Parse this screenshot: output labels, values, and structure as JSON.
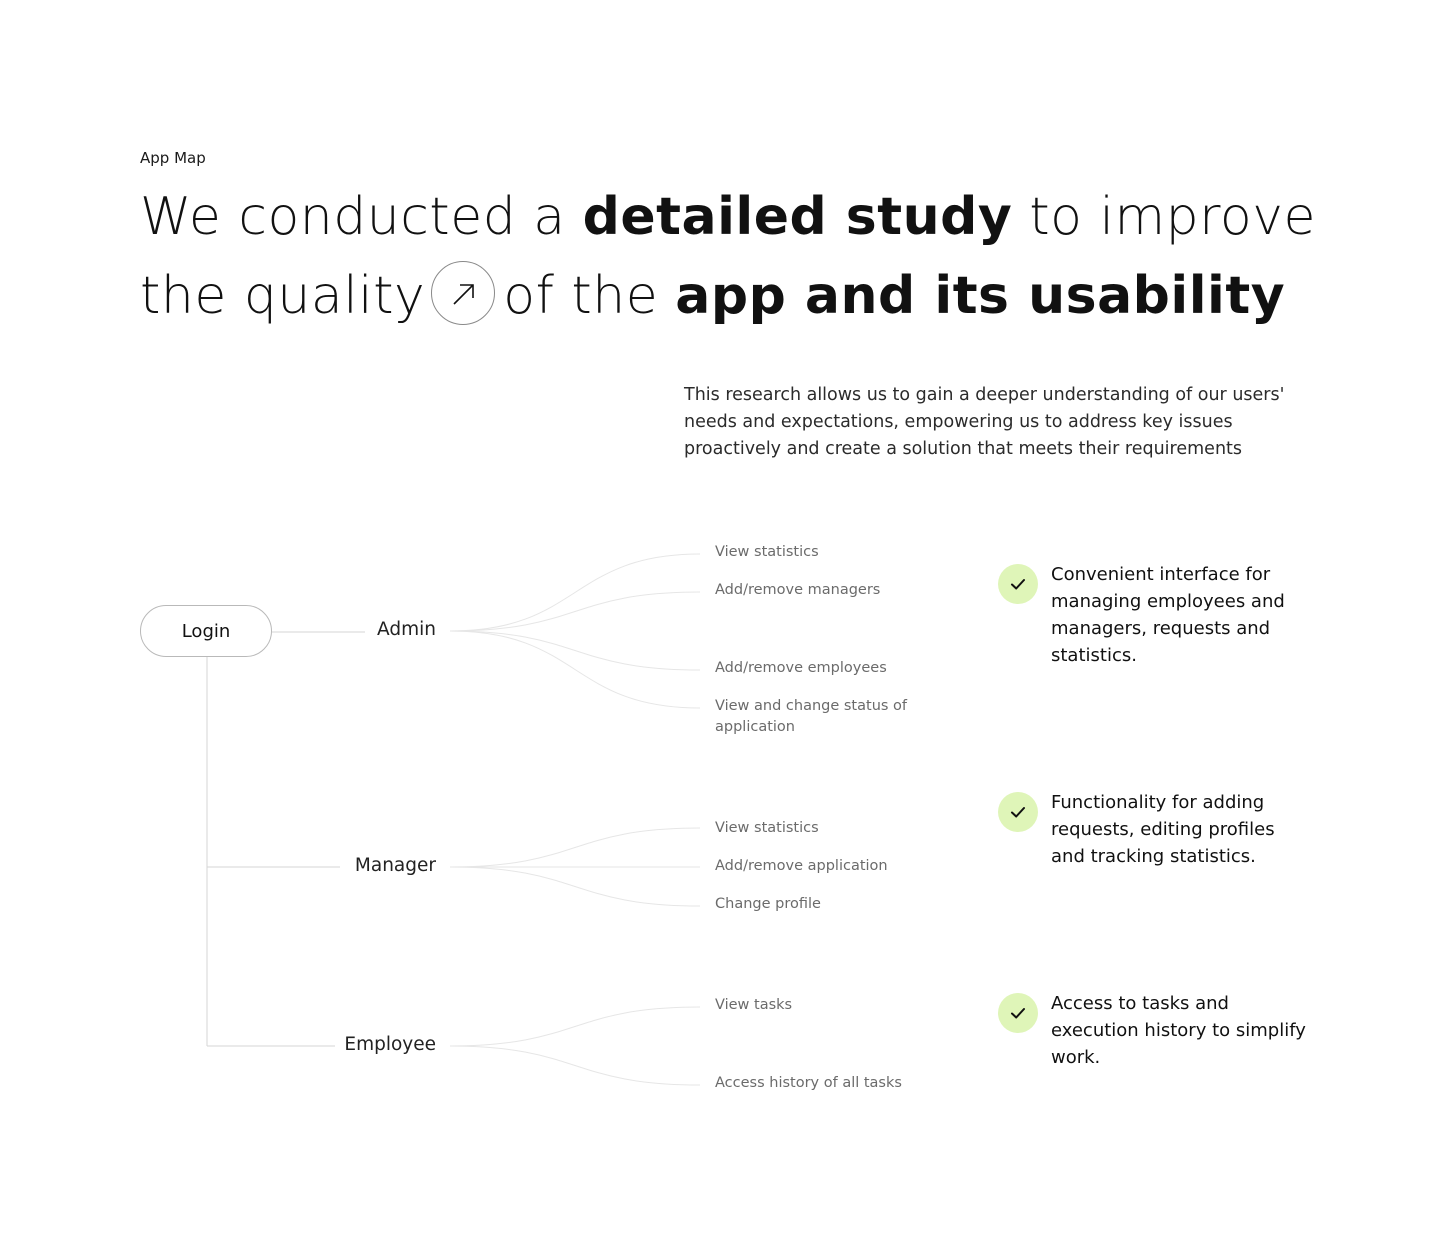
{
  "section_label": "App Map",
  "headline": {
    "part1": "We conducted a ",
    "bold1": "detailed study",
    "part2": " to improve",
    "part3": "the quality",
    "part4": "of the ",
    "bold2": "app and its usability",
    "arrow_icon": "arrow-up-right-icon"
  },
  "intro": "This research allows us to gain a deeper understanding of our users' needs and expectations, empowering us to address key issues proactively and create a solution that meets their requirements",
  "diagram": {
    "root": "Login",
    "roles": [
      {
        "name": "Admin",
        "features": [
          "View statistics",
          "Add/remove managers",
          "Add/remove employees",
          "View and change status of application"
        ],
        "note": "Convenient interface for managing employees and managers, requests and statistics."
      },
      {
        "name": "Manager",
        "features": [
          "View statistics",
          "Add/remove application",
          "Change profile"
        ],
        "note": "Functionality for adding requests, editing profiles and tracking statistics."
      },
      {
        "name": "Employee",
        "features": [
          "View tasks",
          "Access history of all tasks"
        ],
        "note": "Access to tasks and execution history to simplify work."
      }
    ],
    "check_icon": "check-icon",
    "accent_color": "#dff5b8"
  }
}
